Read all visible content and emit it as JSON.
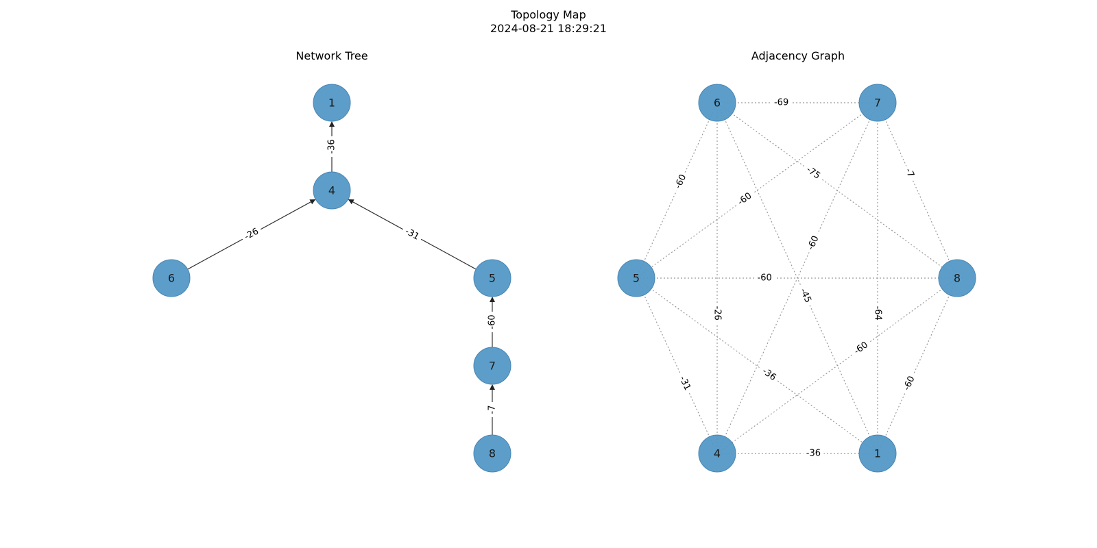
{
  "figure": {
    "title_line1": "Topology Map",
    "title_line2": "2024-08-21 18:29:21"
  },
  "tree": {
    "title": "Network Tree",
    "nodes": [
      "1",
      "4",
      "6",
      "5",
      "7",
      "8"
    ],
    "edges": [
      {
        "from": "4",
        "to": "1",
        "label": "-36"
      },
      {
        "from": "6",
        "to": "4",
        "label": "-26"
      },
      {
        "from": "5",
        "to": "4",
        "label": "-31"
      },
      {
        "from": "7",
        "to": "5",
        "label": "-60"
      },
      {
        "from": "8",
        "to": "7",
        "label": "-7"
      }
    ]
  },
  "graph": {
    "title": "Adjacency Graph",
    "nodes": [
      "6",
      "7",
      "5",
      "8",
      "4",
      "1"
    ],
    "edges": [
      {
        "a": "6",
        "b": "7",
        "label": "-69"
      },
      {
        "a": "6",
        "b": "5",
        "label": "-60"
      },
      {
        "a": "6",
        "b": "8",
        "label": "-75"
      },
      {
        "a": "6",
        "b": "4",
        "label": "-26"
      },
      {
        "a": "6",
        "b": "1",
        "label": "-45"
      },
      {
        "a": "7",
        "b": "5",
        "label": "-60"
      },
      {
        "a": "7",
        "b": "8",
        "label": "-7"
      },
      {
        "a": "7",
        "b": "4",
        "label": "-60"
      },
      {
        "a": "7",
        "b": "1",
        "label": "-64"
      },
      {
        "a": "5",
        "b": "8",
        "label": "-60"
      },
      {
        "a": "5",
        "b": "4",
        "label": "-31"
      },
      {
        "a": "5",
        "b": "1",
        "label": "-36"
      },
      {
        "a": "8",
        "b": "4",
        "label": "-60"
      },
      {
        "a": "8",
        "b": "1",
        "label": "-60"
      },
      {
        "a": "4",
        "b": "1",
        "label": "-36"
      }
    ]
  },
  "colors": {
    "node_fill": "#5499c7",
    "node_stroke": "#3f7fb0",
    "tree_edge": "#333333",
    "graph_edge": "#999999"
  }
}
